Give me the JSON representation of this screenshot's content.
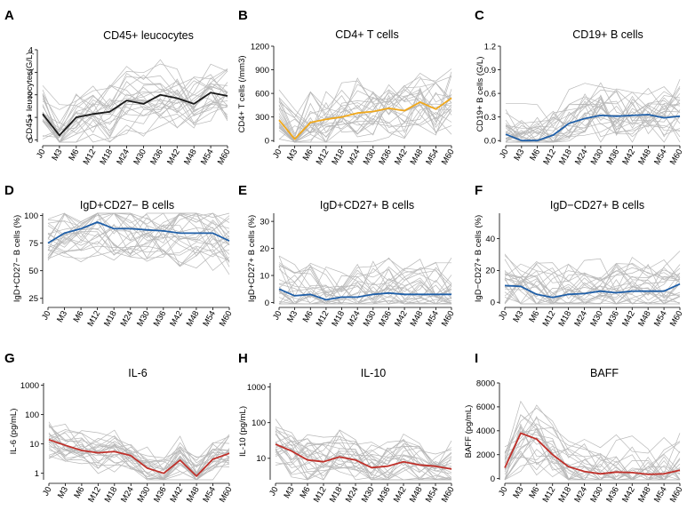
{
  "figure": {
    "background": "#ffffff",
    "gray_line_color": "#b8b8b8"
  },
  "chart_data": [
    {
      "id": "A",
      "letter": "A",
      "type": "line",
      "title": "CD45+ leucocytes",
      "ylabel": "CD45+ leucocytes(G/L)",
      "categories": [
        "J0",
        "M3",
        "M6",
        "M12",
        "M18",
        "M24",
        "M30",
        "M36",
        "M42",
        "M48",
        "M54",
        "M60"
      ],
      "yscale": "linear",
      "ylim": [
        -0.1,
        4.0
      ],
      "yticks": [
        0,
        1,
        2,
        3,
        4
      ],
      "ytick_labels": [
        "0",
        "1",
        "2",
        "3",
        "4"
      ],
      "mean_color": "#1a1a1a",
      "series": [
        {
          "name": "mean",
          "values": [
            1.15,
            0.2,
            1.0,
            1.15,
            1.25,
            1.75,
            1.6,
            2.0,
            1.85,
            1.6,
            2.1,
            1.95
          ]
        }
      ],
      "individual_series_note": "gray individual patient trajectories"
    },
    {
      "id": "B",
      "letter": "B",
      "type": "line",
      "title": "CD4+ T cells",
      "ylabel": "CD4+ T cells (/mm3)",
      "categories": [
        "J0",
        "M3",
        "M6",
        "M12",
        "M18",
        "M24",
        "M30",
        "M36",
        "M42",
        "M48",
        "M54",
        "M60"
      ],
      "yscale": "linear",
      "ylim": [
        -20,
        1200
      ],
      "yticks": [
        0,
        300,
        600,
        900,
        1200
      ],
      "ytick_labels": [
        "0",
        "300",
        "600",
        "900",
        "1200"
      ],
      "mean_color": "#f0a81c",
      "series": [
        {
          "name": "mean",
          "values": [
            260,
            20,
            230,
            270,
            300,
            350,
            370,
            410,
            380,
            490,
            400,
            540
          ]
        }
      ]
    },
    {
      "id": "C",
      "letter": "C",
      "type": "line",
      "title": "CD19+ B cells",
      "ylabel": "CD19+ B cells (G/L)",
      "categories": [
        "J0",
        "M3",
        "M6",
        "M12",
        "M18",
        "M24",
        "M30",
        "M36",
        "M42",
        "M48",
        "M54",
        "M60"
      ],
      "yscale": "linear",
      "ylim": [
        -0.02,
        1.2
      ],
      "yticks": [
        0.0,
        0.3,
        0.6,
        0.9,
        1.2
      ],
      "ytick_labels": [
        "0.0",
        "0.3",
        "0.6",
        "0.9",
        "1.2"
      ],
      "mean_color": "#1f5fa8",
      "series": [
        {
          "name": "mean",
          "values": [
            0.08,
            0.0,
            0.0,
            0.07,
            0.22,
            0.28,
            0.32,
            0.31,
            0.32,
            0.33,
            0.29,
            0.31
          ]
        }
      ]
    },
    {
      "id": "D",
      "letter": "D",
      "type": "line",
      "title": "IgD+CD27− B cells",
      "ylabel": "IgD+CD27− B cells (%)",
      "categories": [
        "J0",
        "M3",
        "M6",
        "M12",
        "M18",
        "M24",
        "M30",
        "M36",
        "M42",
        "M48",
        "M54",
        "M60"
      ],
      "yscale": "linear",
      "ylim": [
        20,
        102
      ],
      "yticks": [
        25,
        50,
        75,
        100
      ],
      "ytick_labels": [
        "25",
        "50",
        "75",
        "100"
      ],
      "mean_color": "#1f5fa8",
      "series": [
        {
          "name": "mean",
          "values": [
            75,
            84,
            88,
            94,
            88,
            88,
            87,
            86,
            84,
            84,
            84,
            77
          ]
        }
      ]
    },
    {
      "id": "E",
      "letter": "E",
      "type": "line",
      "title": "IgD+CD27+ B cells",
      "ylabel": "IgD+CD27+ B cells (%)",
      "categories": [
        "J0",
        "M3",
        "M6",
        "M12",
        "M18",
        "M24",
        "M30",
        "M36",
        "M42",
        "M48",
        "M54",
        "M60"
      ],
      "yscale": "linear",
      "ylim": [
        -0.5,
        33
      ],
      "yticks": [
        0,
        10,
        20,
        30
      ],
      "ytick_labels": [
        "0",
        "10",
        "20",
        "30"
      ],
      "mean_color": "#1f5fa8",
      "series": [
        {
          "name": "mean",
          "values": [
            5.0,
            2.5,
            3.0,
            1.0,
            2.0,
            2.0,
            3.0,
            3.5,
            3.0,
            3.0,
            3.0,
            3.0
          ]
        }
      ]
    },
    {
      "id": "F",
      "letter": "F",
      "type": "line",
      "title": "IgD−CD27+ B cells",
      "ylabel": "IgD−CD27+ B cells (%)",
      "categories": [
        "J0",
        "M3",
        "M6",
        "M12",
        "M18",
        "M24",
        "M30",
        "M36",
        "M42",
        "M48",
        "M54",
        "M60"
      ],
      "yscale": "linear",
      "ylim": [
        -1,
        56
      ],
      "yticks": [
        0,
        20,
        40
      ],
      "ytick_labels": [
        "0",
        "20",
        "40"
      ],
      "mean_color": "#1f5fa8",
      "series": [
        {
          "name": "mean",
          "values": [
            10.5,
            10.0,
            5.0,
            3.0,
            5.0,
            5.5,
            7.0,
            6.0,
            7.0,
            7.0,
            7.0,
            11.5
          ]
        }
      ]
    },
    {
      "id": "G",
      "letter": "G",
      "type": "line",
      "title": "IL-6",
      "ylabel": "IL-6 (pg/mL)",
      "categories": [
        "J0",
        "M3",
        "M6",
        "M12",
        "M18",
        "M24",
        "M30",
        "M36",
        "M42",
        "M48",
        "M54",
        "M60"
      ],
      "yscale": "log",
      "ylim": [
        0.6,
        1200
      ],
      "yticks": [
        1,
        10,
        100,
        1000
      ],
      "ytick_labels": [
        "1",
        "10",
        "100",
        "1000"
      ],
      "mean_color": "#c0302a",
      "series": [
        {
          "name": "mean",
          "values": [
            14,
            9,
            6,
            5,
            5.5,
            4,
            1.5,
            1.0,
            2.8,
            0.8,
            3.0,
            4.8
          ]
        }
      ]
    },
    {
      "id": "H",
      "letter": "H",
      "type": "line",
      "title": "IL-10",
      "ylabel": "IL-10 (pg/mL)",
      "categories": [
        "J0",
        "M3",
        "M6",
        "M12",
        "M18",
        "M24",
        "M30",
        "M36",
        "M42",
        "M48",
        "M54",
        "M60"
      ],
      "yscale": "log",
      "ylim": [
        2.5,
        1300
      ],
      "yticks": [
        10,
        100,
        1000
      ],
      "ytick_labels": [
        "10",
        "100",
        "1000"
      ],
      "mean_color": "#c0302a",
      "series": [
        {
          "name": "mean",
          "values": [
            25,
            16,
            9,
            8,
            11,
            9,
            5.5,
            6.0,
            8,
            6.5,
            6.0,
            5.0
          ]
        }
      ]
    },
    {
      "id": "I",
      "letter": "I",
      "type": "line",
      "title": "BAFF",
      "ylabel": "BAFF (pg/mL)",
      "categories": [
        "J0",
        "M3",
        "M6",
        "M12",
        "M18",
        "M24",
        "M30",
        "M36",
        "M42",
        "M48",
        "M54",
        "M60"
      ],
      "yscale": "linear",
      "ylim": [
        -100,
        8000
      ],
      "yticks": [
        0,
        2000,
        4000,
        6000,
        8000
      ],
      "ytick_labels": [
        "0",
        "2000",
        "4000",
        "6000",
        "8000"
      ],
      "mean_color": "#c0302a",
      "series": [
        {
          "name": "mean",
          "values": [
            900,
            3800,
            3300,
            2000,
            1000,
            600,
            400,
            550,
            500,
            350,
            400,
            700
          ]
        }
      ]
    }
  ]
}
